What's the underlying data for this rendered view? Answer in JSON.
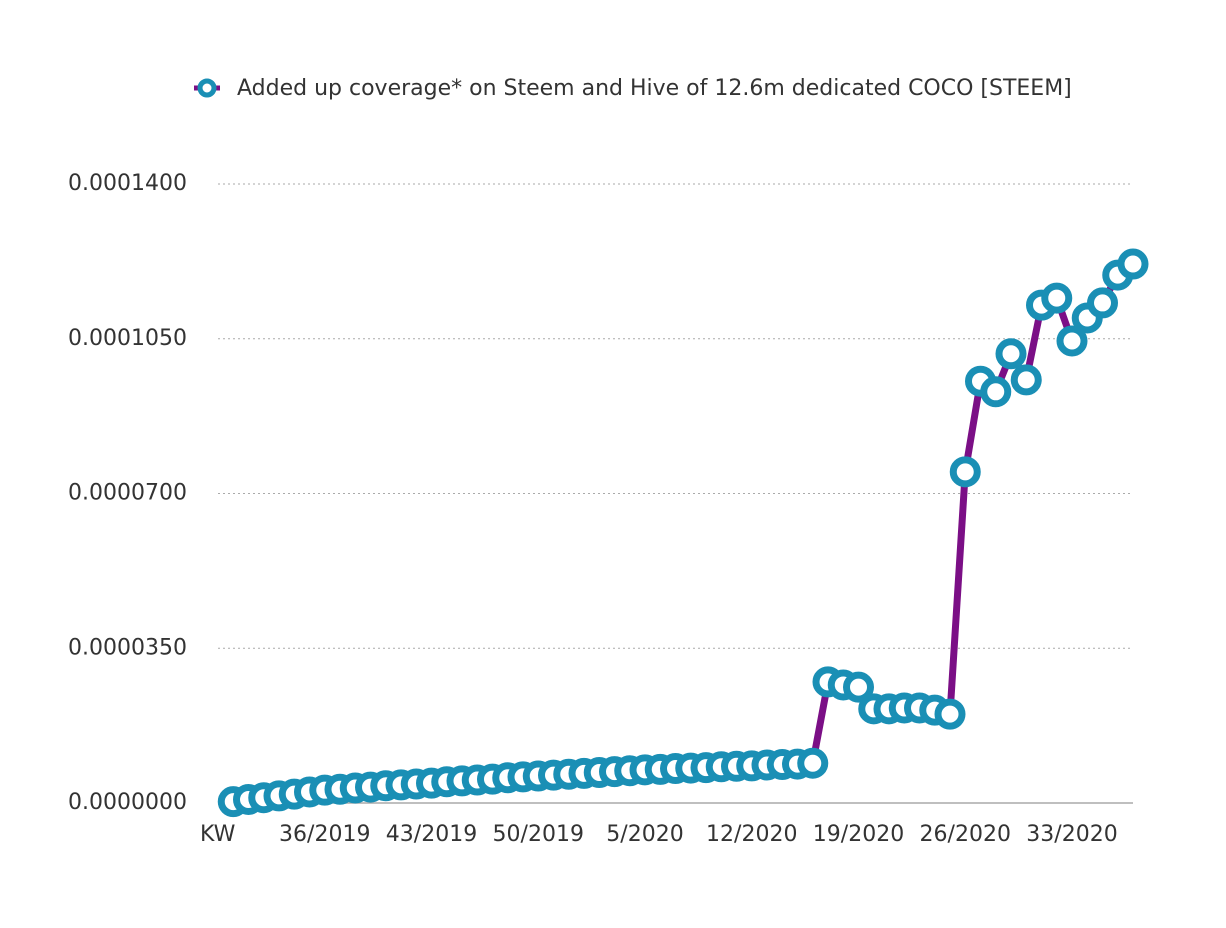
{
  "chart_data": {
    "type": "line",
    "categories": [
      "KW",
      null,
      null,
      null,
      null,
      null,
      null,
      "36/2019",
      null,
      null,
      null,
      null,
      null,
      null,
      "43/2019",
      null,
      null,
      null,
      null,
      null,
      null,
      "50/2019",
      null,
      null,
      null,
      null,
      null,
      null,
      "5/2020",
      null,
      null,
      null,
      null,
      null,
      null,
      "12/2020",
      null,
      null,
      null,
      null,
      null,
      null,
      "19/2020",
      null,
      null,
      null,
      null,
      null,
      null,
      "26/2020",
      null,
      null,
      null,
      null,
      null,
      null,
      "33/2020",
      null,
      null,
      null,
      null
    ],
    "series": [
      {
        "name": "Added up coverage* on Steem and Hive of 12.6m dedicated COCO [STEEM]",
        "color": "#7b0f86",
        "marker_color": "#1a8fb5",
        "values": [
          null,
          3e-07,
          8e-07,
          1.2e-06,
          1.6e-06,
          2e-06,
          2.5e-06,
          2.9e-06,
          3.1e-06,
          3.4e-06,
          3.6e-06,
          3.9e-06,
          4.1e-06,
          4.3e-06,
          4.5e-06,
          4.8e-06,
          5e-06,
          5.2e-06,
          5.4e-06,
          5.7e-06,
          5.9e-06,
          6.1e-06,
          6.3e-06,
          6.5e-06,
          6.7e-06,
          6.9e-06,
          7.1e-06,
          7.3e-06,
          7.5e-06,
          7.6e-06,
          7.8e-06,
          7.9e-06,
          8e-06,
          8.2e-06,
          8.3e-06,
          8.4e-06,
          8.6e-06,
          8.7e-06,
          8.8e-06,
          9e-06,
          2.74e-05,
          2.67e-05,
          2.62e-05,
          2.13e-05,
          2.13e-05,
          2.15e-05,
          2.15e-05,
          2.1e-05,
          2.01e-05,
          7.49e-05,
          9.54e-05,
          9.3e-05,
          0.0001016,
          9.57e-05,
          0.0001126,
          0.0001142,
          0.0001045,
          0.0001097,
          0.0001131,
          0.0001194,
          0.0001219
        ]
      }
    ],
    "ylim": [
      0,
      0.00014
    ],
    "yticks": [
      {
        "value": 0,
        "label": "0.0000000"
      },
      {
        "value": 3.5e-05,
        "label": "0.0000350"
      },
      {
        "value": 7e-05,
        "label": "0.0000700"
      },
      {
        "value": 0.000105,
        "label": "0.0001050"
      },
      {
        "value": 0.00014,
        "label": "0.0001400"
      }
    ],
    "grid": true,
    "legend": "top"
  }
}
